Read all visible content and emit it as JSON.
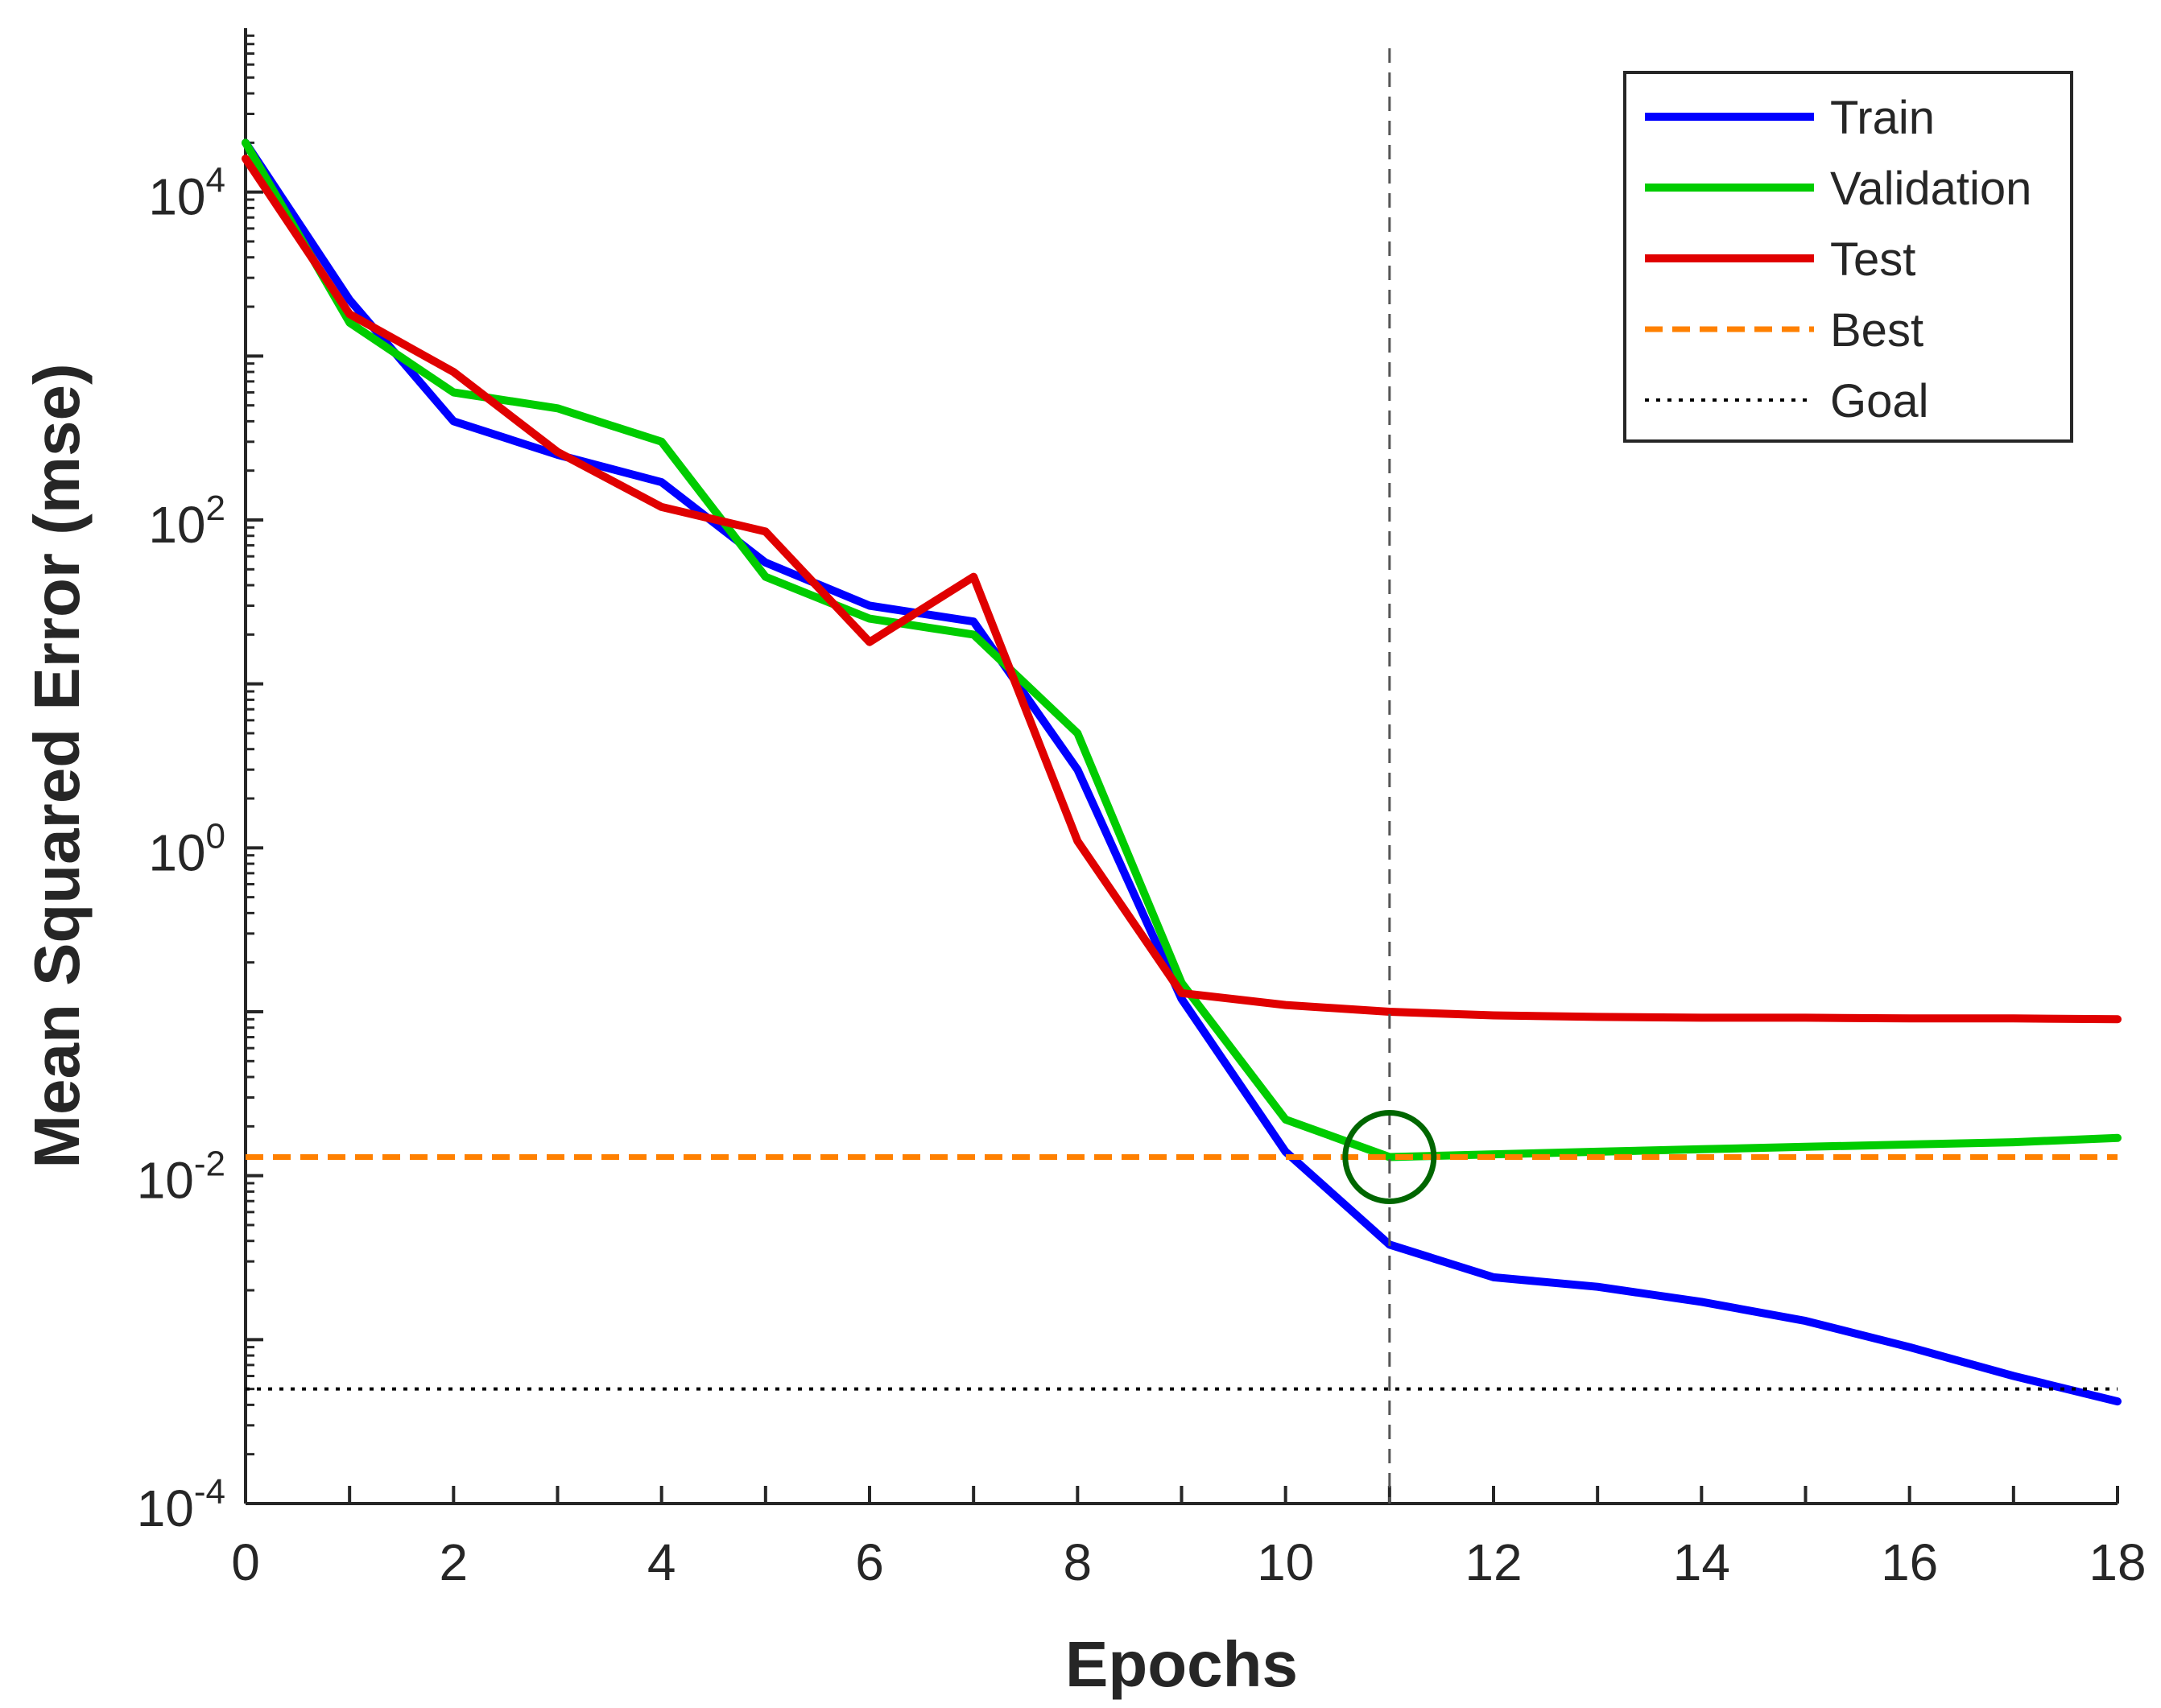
{
  "chart_data": {
    "type": "line",
    "xlabel": "Epochs",
    "ylabel": "Mean Squared Error  (mse)",
    "x_scale": "linear",
    "y_scale": "log",
    "xlim": [
      0,
      18
    ],
    "ylim": [
      0.0001,
      100000
    ],
    "x_ticks": [
      0,
      2,
      4,
      6,
      8,
      10,
      12,
      14,
      16,
      18
    ],
    "x_minor_ticks": [
      1,
      3,
      5,
      7,
      9,
      11,
      13,
      15,
      17
    ],
    "y_ticks": [
      {
        "value": 0.0001,
        "base": "10",
        "exp": "-4"
      },
      {
        "value": 0.01,
        "base": "10",
        "exp": "-2"
      },
      {
        "value": 1,
        "base": "10",
        "exp": "0"
      },
      {
        "value": 100,
        "base": "10",
        "exp": "2"
      },
      {
        "value": 10000,
        "base": "10",
        "exp": "4"
      }
    ],
    "grid": false,
    "legend_position": "top-right",
    "epochs": [
      0,
      1,
      2,
      3,
      4,
      5,
      6,
      7,
      8,
      9,
      10,
      11,
      12,
      13,
      14,
      15,
      16,
      17,
      18
    ],
    "series": [
      {
        "name": "Train",
        "color": "#0000ff",
        "style": "solid",
        "values": [
          20000,
          2200,
          400,
          250,
          170,
          55,
          30,
          24,
          3,
          0.12,
          0.014,
          0.0038,
          0.0024,
          0.0021,
          0.0017,
          0.0013,
          0.0009,
          0.0006,
          0.00042
        ]
      },
      {
        "name": "Validation",
        "color": "#00cc00",
        "style": "solid",
        "values": [
          20000,
          1600,
          600,
          480,
          300,
          45,
          25,
          20,
          5,
          0.15,
          0.022,
          0.013,
          0.0135,
          0.014,
          0.0145,
          0.015,
          0.0155,
          0.016,
          0.017
        ]
      },
      {
        "name": "Test",
        "color": "#e00000",
        "style": "solid",
        "values": [
          16000,
          1800,
          800,
          260,
          120,
          85,
          18,
          45,
          1.1,
          0.13,
          0.11,
          0.1,
          0.095,
          0.093,
          0.092,
          0.092,
          0.091,
          0.091,
          0.09
        ]
      },
      {
        "name": "Best",
        "color": "#ff8000",
        "style": "dashed",
        "constant": 0.013
      },
      {
        "name": "Goal",
        "color": "#000000",
        "style": "dotted",
        "constant": 0.0005
      }
    ],
    "best_epoch": 11,
    "best_marker": {
      "epoch": 11,
      "value": 0.013,
      "color": "#006600"
    }
  }
}
